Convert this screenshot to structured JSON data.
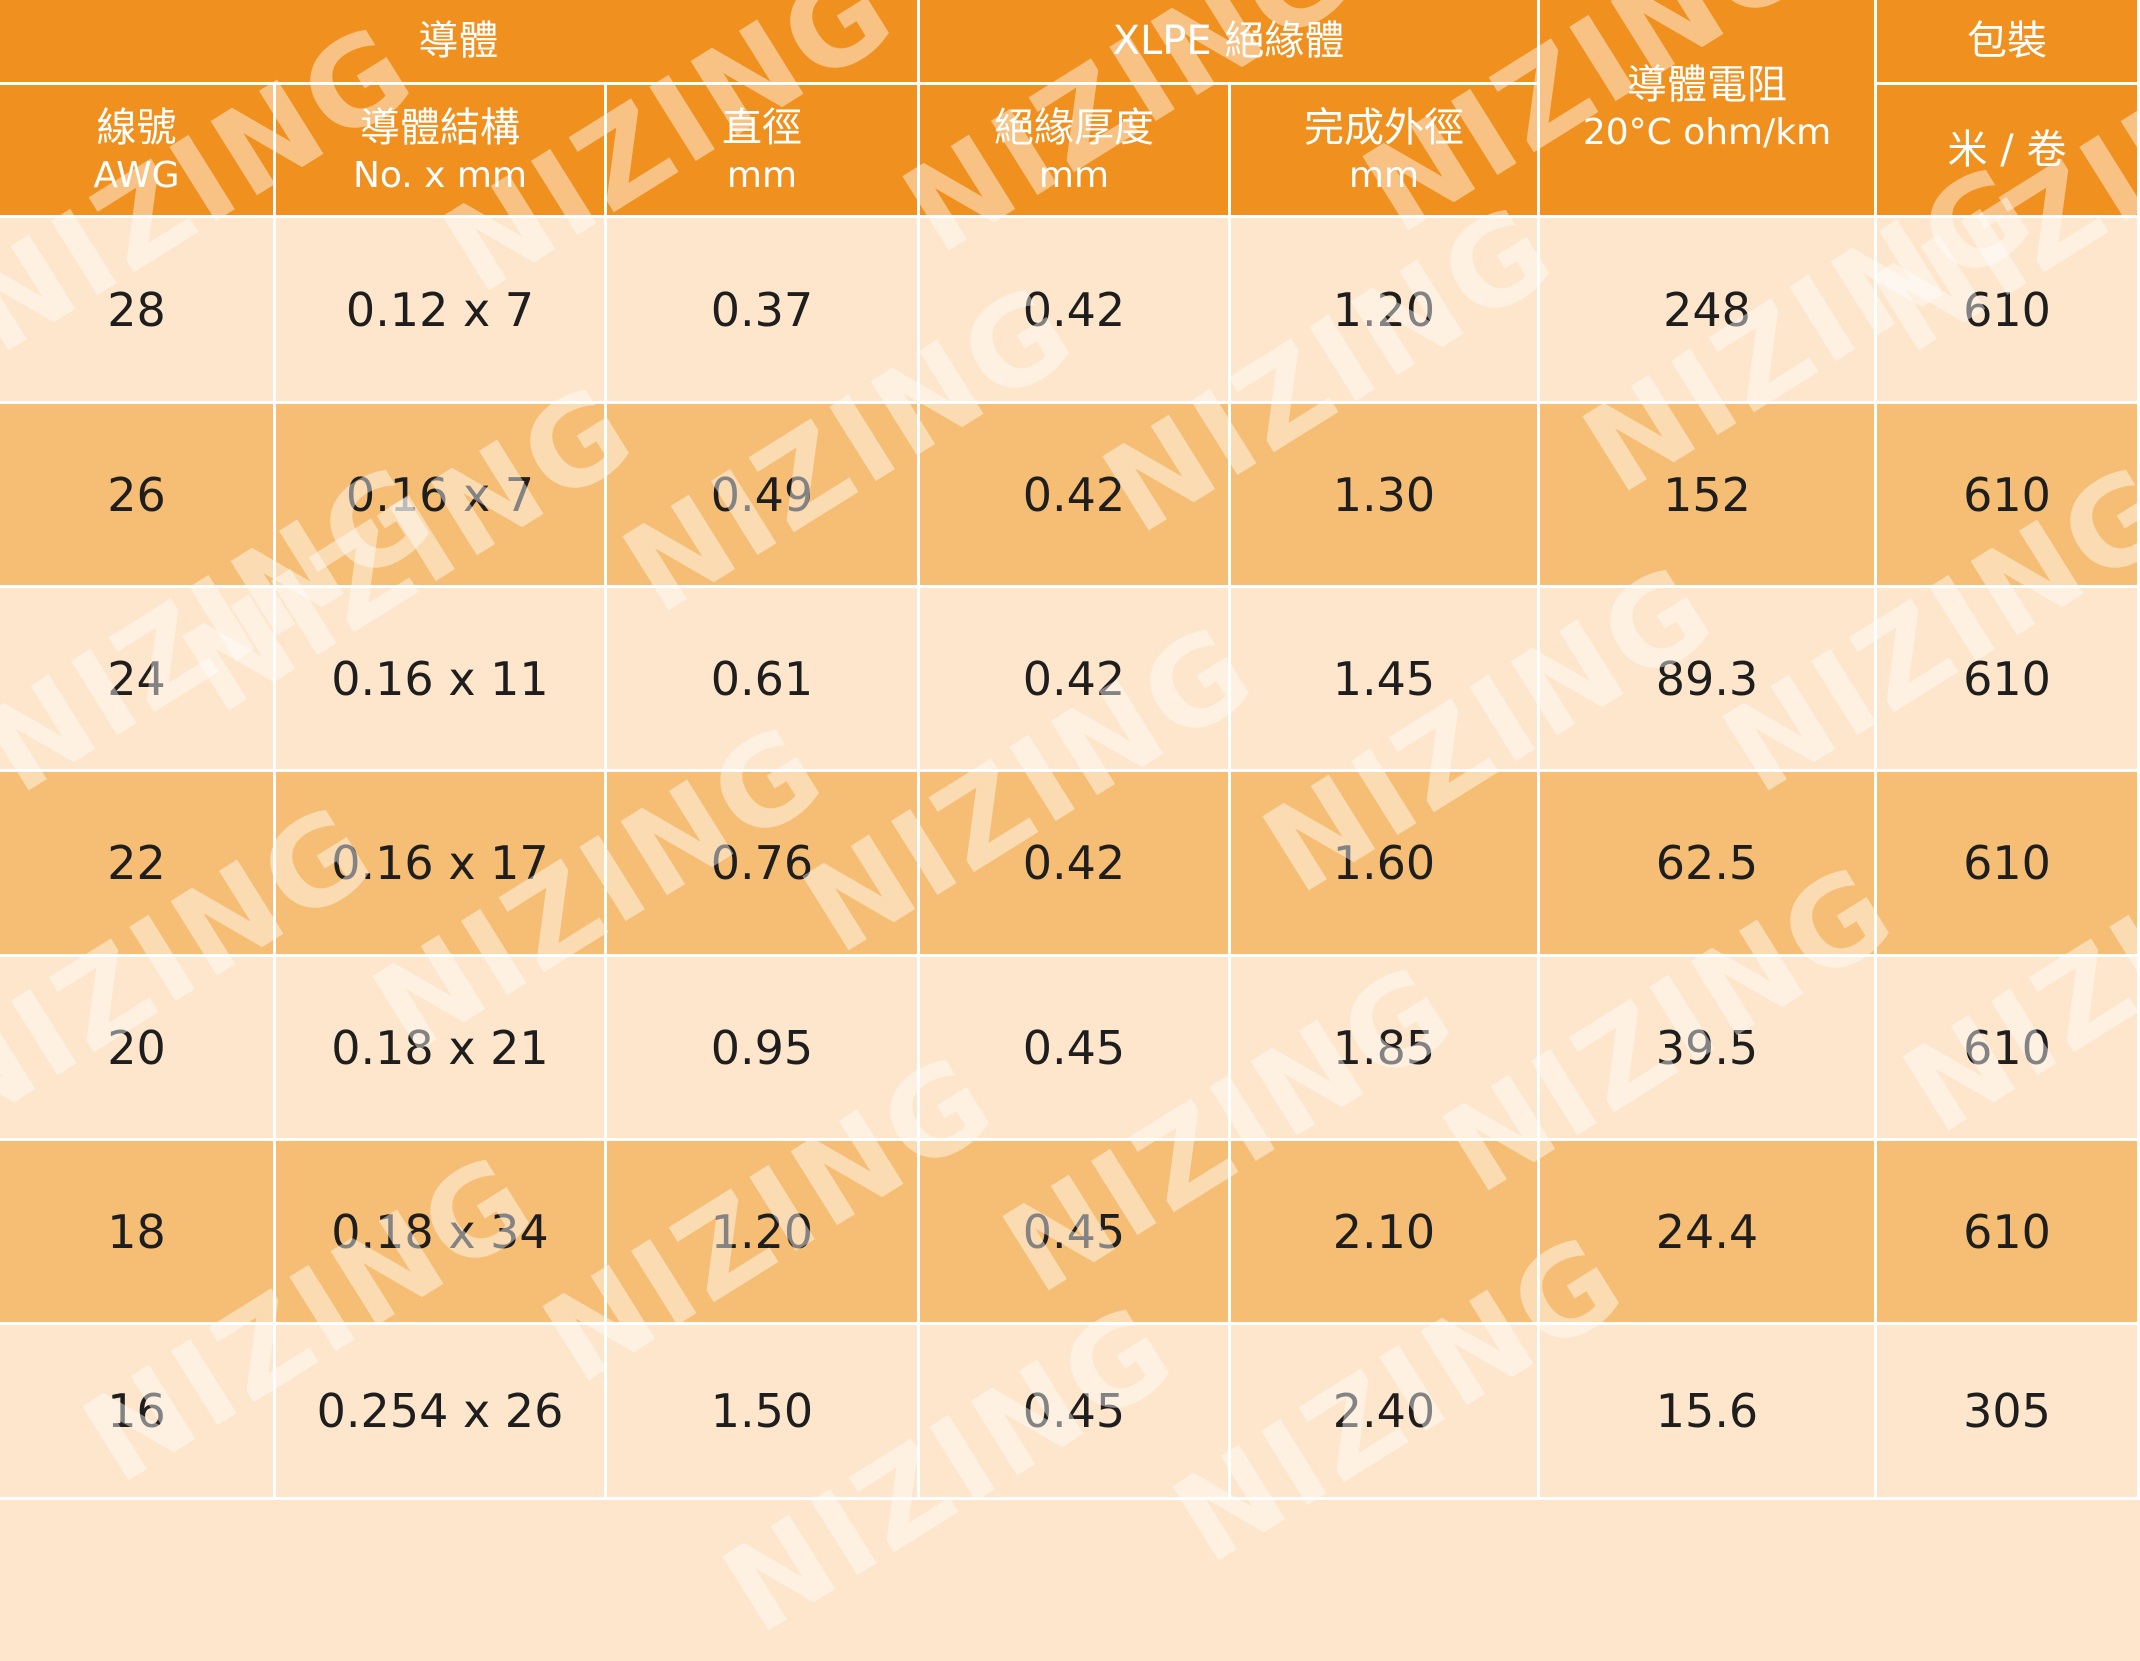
{
  "header": {
    "groups": [
      {
        "label": "導體"
      },
      {
        "label": "XLPE 絕緣體"
      },
      {
        "label": "導體電阻",
        "unit": "20°C ohm/km"
      },
      {
        "label": "包裝"
      }
    ],
    "columns": [
      {
        "label": "線號",
        "unit": "AWG"
      },
      {
        "label": "導體結構",
        "unit": "No. x mm"
      },
      {
        "label": "直徑",
        "unit": "mm"
      },
      {
        "label": "絕緣厚度",
        "unit": "mm"
      },
      {
        "label": "完成外徑",
        "unit": "mm"
      },
      {
        "label": "米 / 卷"
      }
    ]
  },
  "table": {
    "rows": [
      [
        "28",
        "0.12 x 7",
        "0.37",
        "0.42",
        "1.20",
        "248",
        "610"
      ],
      [
        "26",
        "0.16 x 7",
        "0.49",
        "0.42",
        "1.30",
        "152",
        "610"
      ],
      [
        "24",
        "0.16 x 11",
        "0.61",
        "0.42",
        "1.45",
        "89.3",
        "610"
      ],
      [
        "22",
        "0.16 x 17",
        "0.76",
        "0.42",
        "1.60",
        "62.5",
        "610"
      ],
      [
        "20",
        "0.18 x 21",
        "0.95",
        "0.45",
        "1.85",
        "39.5",
        "610"
      ],
      [
        "18",
        "0.18 x 34",
        "1.20",
        "0.45",
        "2.10",
        "24.4",
        "610"
      ],
      [
        "16",
        "0.254 x 26",
        "1.50",
        "0.45",
        "2.40",
        "15.6",
        "305"
      ]
    ]
  },
  "watermark": "NIZING"
}
